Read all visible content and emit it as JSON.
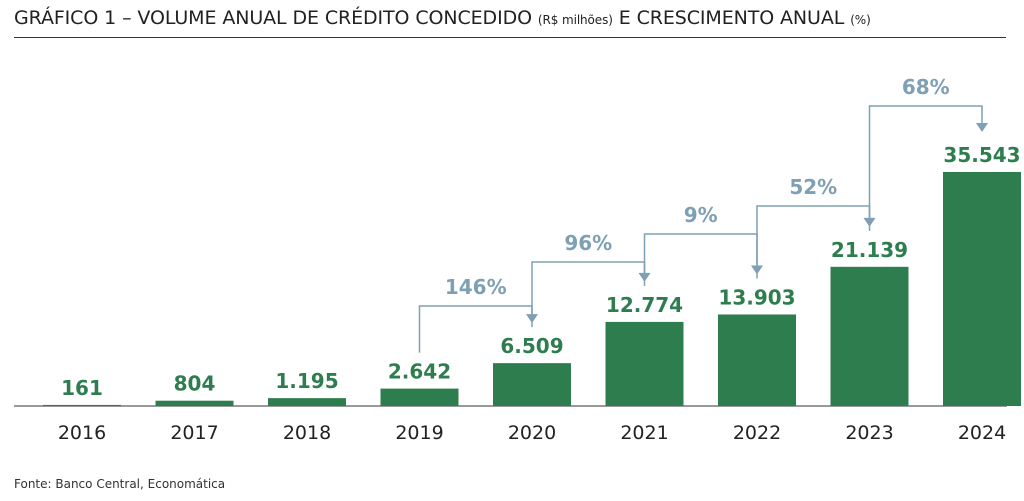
{
  "title": {
    "main": "GRÁFICO 1 – VOLUME ANUAL DE CRÉDITO CONCEDIDO",
    "unit_volume": "(R$ milhões)",
    "middle": "E CRESCIMENTO ANUAL",
    "unit_growth": "(%)"
  },
  "source": "Fonte: Banco Central, Economática",
  "colors": {
    "bar": "#2e7d4f",
    "value_label": "#2e7d4f",
    "growth": "#7fa0b4",
    "axis": "#333333",
    "tick": "#222222"
  },
  "chart_data": {
    "type": "bar",
    "categories": [
      "2016",
      "2017",
      "2018",
      "2019",
      "2020",
      "2021",
      "2022",
      "2023",
      "2024"
    ],
    "values": [
      161,
      804,
      1195,
      2642,
      6509,
      12774,
      13903,
      21139,
      35543
    ],
    "value_labels": [
      "161",
      "804",
      "1.195",
      "2.642",
      "6.509",
      "12.774",
      "13.903",
      "21.139",
      "35.543"
    ],
    "growth": [
      {
        "from": "2019",
        "to": "2020",
        "label": "146%"
      },
      {
        "from": "2020",
        "to": "2021",
        "label": "96%"
      },
      {
        "from": "2021",
        "to": "2022",
        "label": "9%"
      },
      {
        "from": "2022",
        "to": "2023",
        "label": "52%"
      },
      {
        "from": "2023",
        "to": "2024",
        "label": "68%"
      }
    ],
    "ylim": [
      0,
      35543
    ],
    "grid": false,
    "legend": "none"
  }
}
